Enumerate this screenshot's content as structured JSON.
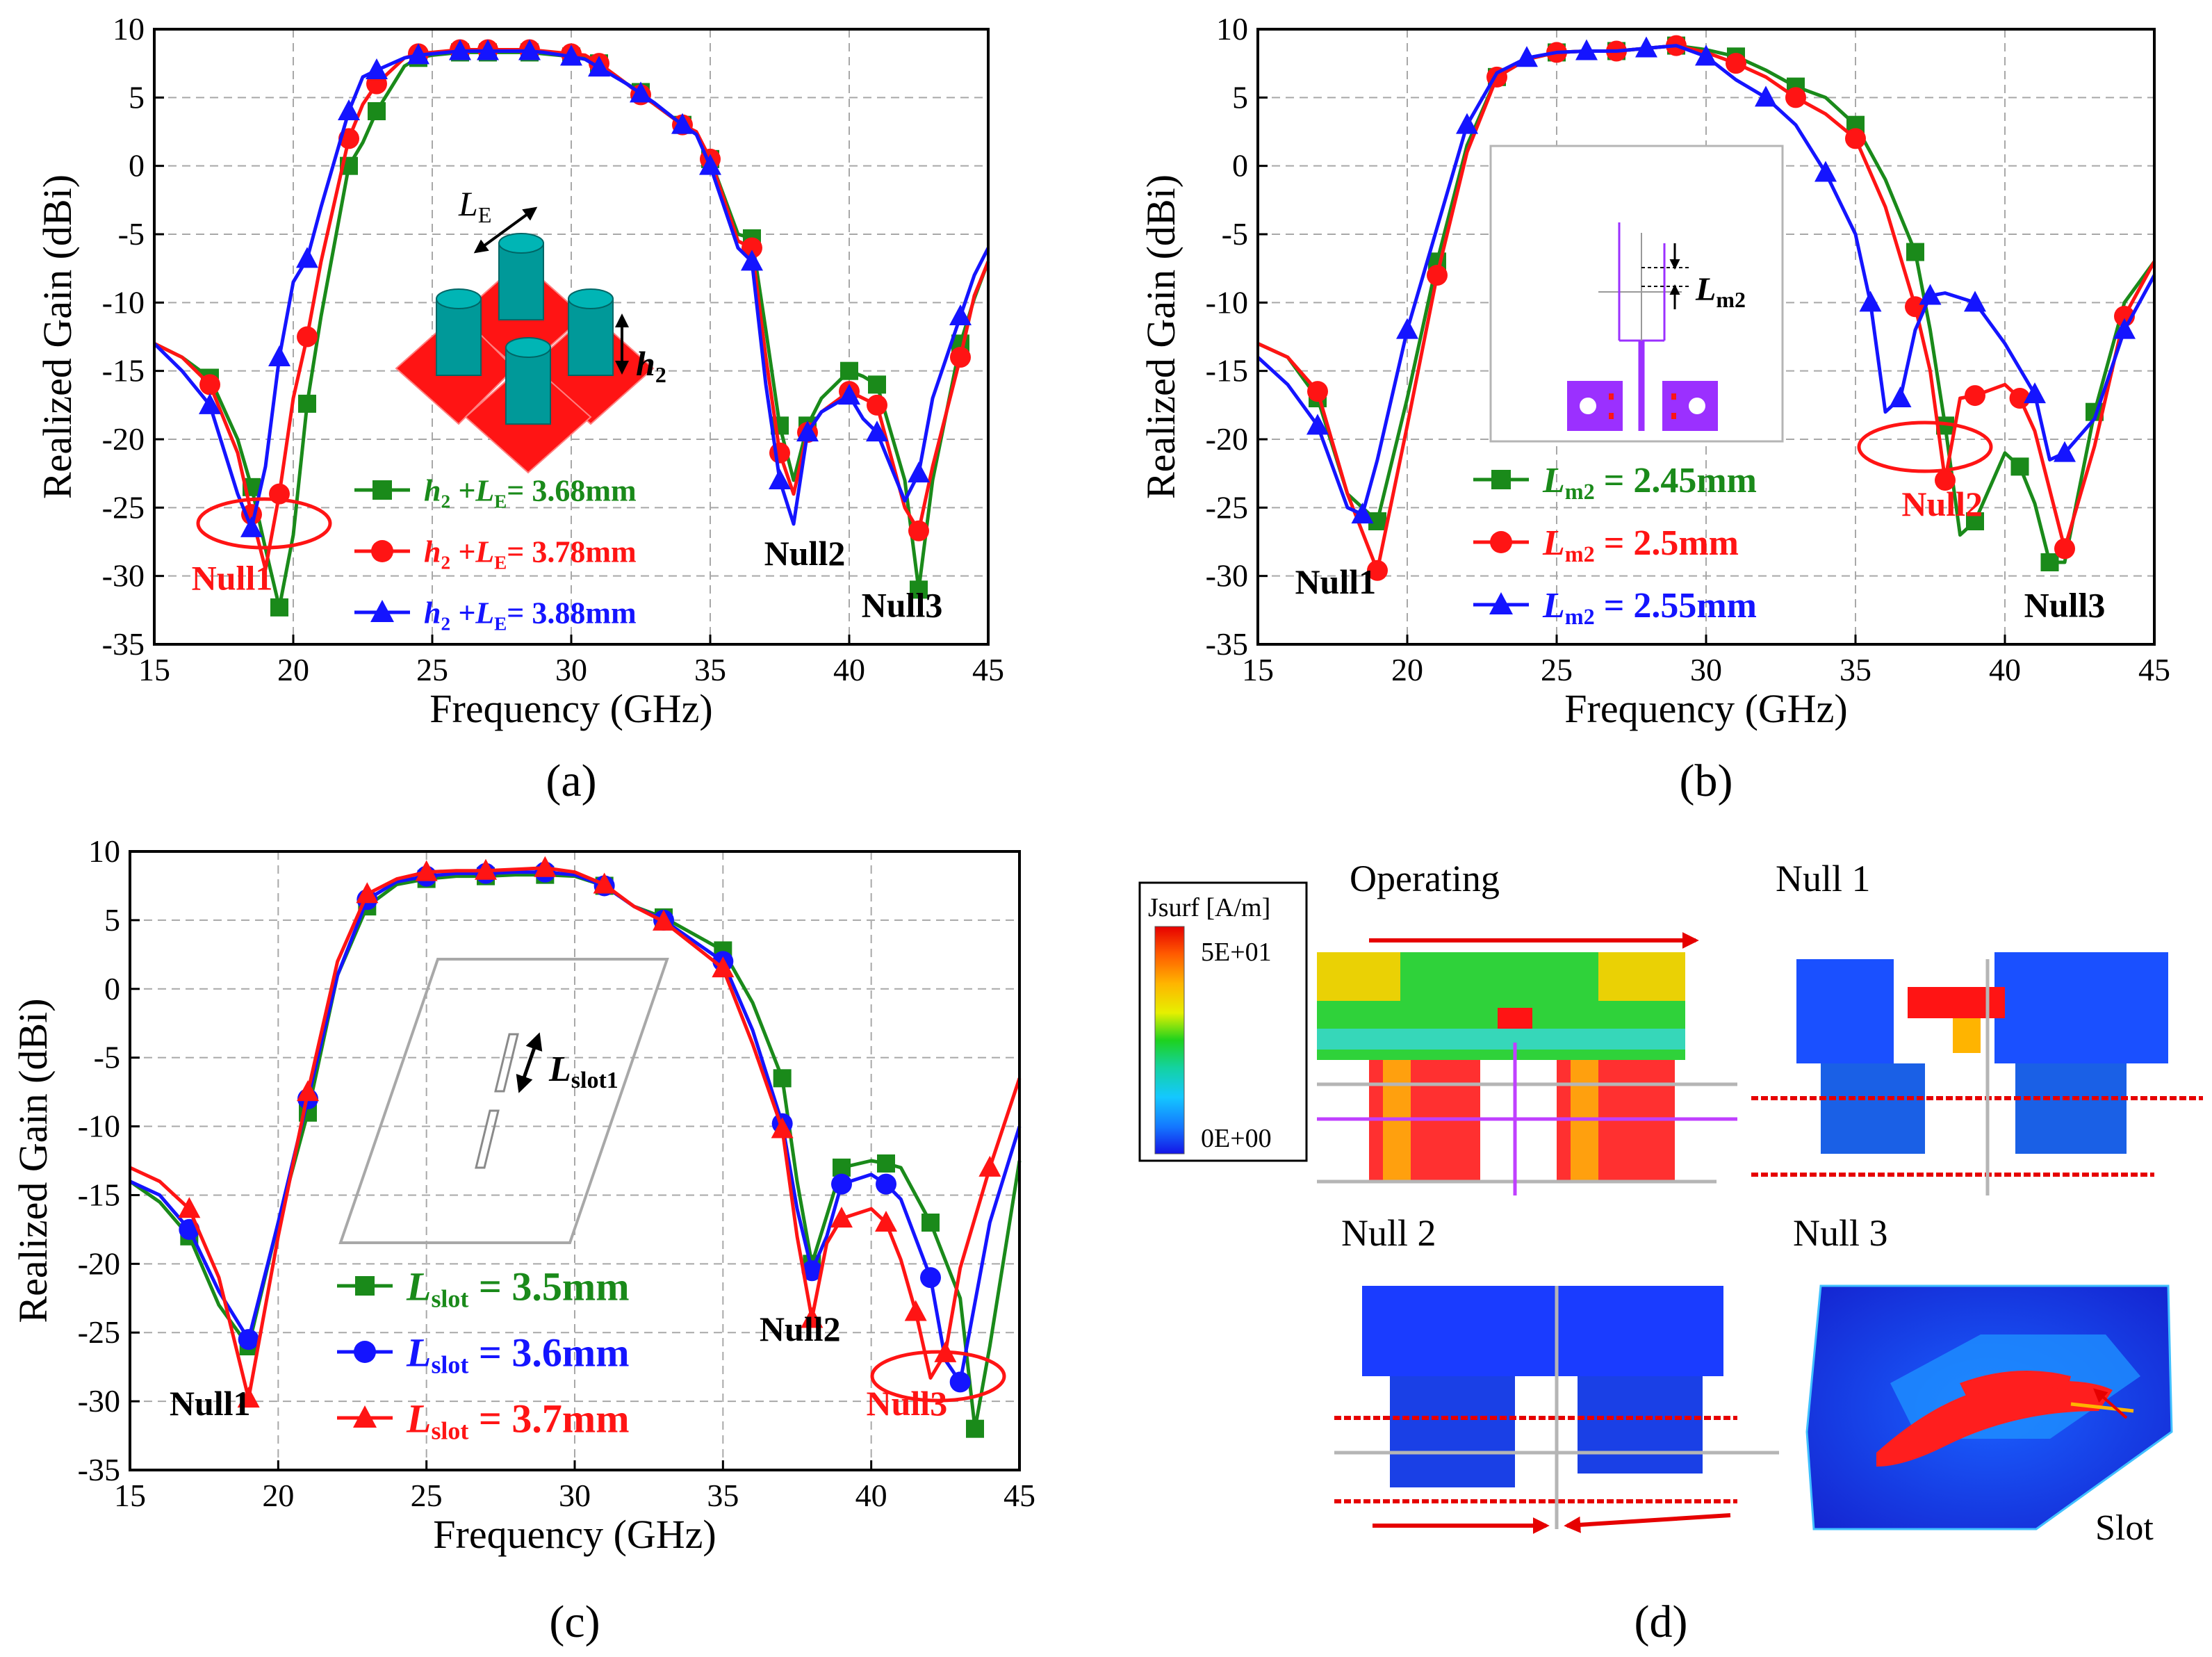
{
  "colors": {
    "green": "#1a8a1a",
    "red": "#ff1414",
    "blue": "#1414ff",
    "grid": "#a8a8a8"
  },
  "chart_data": [
    {
      "id": "a",
      "type": "line",
      "panel_label": "(a)",
      "xlabel": "Frequency (GHz)",
      "ylabel": "Realized Gain (dBi)",
      "xlim": [
        15,
        45
      ],
      "ylim": [
        -35,
        10
      ],
      "xticks": [
        15,
        20,
        25,
        30,
        35,
        40,
        45
      ],
      "yticks": [
        10,
        5,
        0,
        -5,
        -10,
        -15,
        -20,
        -25,
        -30,
        -35
      ],
      "grid": true,
      "series": [
        {
          "name": "h2 +LE= 3.68mm",
          "label_main": "h",
          "label_sub1": "2",
          "label_mid": " +L",
          "label_sub2": "E",
          "label_tail": "= 3.68mm",
          "color": "green",
          "marker": "square",
          "x": [
            15,
            16,
            17,
            18,
            18.5,
            19,
            19.5,
            20,
            20.5,
            21,
            22,
            22.5,
            23,
            24,
            24.5,
            25,
            26,
            26.5,
            27,
            28,
            28.5,
            29,
            30,
            30.5,
            31,
            32,
            32.5,
            33,
            34,
            34.5,
            35,
            36,
            36.5,
            37,
            37.5,
            38,
            38.5,
            39,
            40,
            40.5,
            41,
            42,
            42.5,
            43,
            44,
            44.5,
            45
          ],
          "y": [
            -13,
            -14,
            -15.5,
            -20,
            -23.5,
            -28,
            -32.3,
            -27,
            -17.4,
            -11,
            0,
            1.7,
            4,
            7.3,
            7.9,
            8.1,
            8.3,
            8.3,
            8.3,
            8.3,
            8.3,
            8.2,
            8,
            7.9,
            7.5,
            6,
            5.4,
            4.5,
            3,
            2.3,
            0.5,
            -5,
            -5.3,
            -12,
            -19,
            -23,
            -19,
            -17,
            -15,
            -15.4,
            -16,
            -23,
            -31,
            -23,
            -13,
            -9.7,
            -7
          ]
        },
        {
          "name": "h2 +LE= 3.78mm",
          "label_main": "h",
          "label_sub1": "2",
          "label_mid": " +L",
          "label_sub2": "E",
          "label_tail": "= 3.78mm",
          "color": "red",
          "marker": "circle",
          "x": [
            15,
            16,
            17,
            18,
            18.5,
            19,
            19.5,
            20,
            20.5,
            21,
            22,
            22.5,
            23,
            24,
            24.5,
            25,
            26,
            26.5,
            27,
            28,
            28.5,
            29,
            30,
            30.5,
            31,
            32,
            32.5,
            33,
            34,
            34.5,
            35,
            36,
            36.5,
            37,
            37.5,
            38,
            38.5,
            39,
            40,
            40.5,
            41,
            42,
            42.5,
            43,
            44,
            44.5,
            45
          ],
          "y": [
            -13,
            -14,
            -16,
            -21,
            -25.5,
            -29.5,
            -24,
            -17,
            -12.5,
            -7,
            2,
            4.5,
            6,
            7.9,
            8.2,
            8.3,
            8.5,
            8.5,
            8.5,
            8.5,
            8.5,
            8.4,
            8.2,
            8.1,
            7.5,
            6,
            5.2,
            4.5,
            3,
            2.5,
            0.5,
            -5.5,
            -6,
            -14,
            -21,
            -24,
            -19.5,
            -18,
            -16.5,
            -17,
            -17.5,
            -25,
            -26.7,
            -22,
            -14,
            -9.5,
            -7
          ]
        },
        {
          "name": "h2 +LE= 3.88mm",
          "label_main": "h",
          "label_sub1": "2",
          "label_mid": " +L",
          "label_sub2": "E",
          "label_tail": "= 3.88mm",
          "color": "blue",
          "marker": "triangle",
          "x": [
            15,
            16,
            17,
            18,
            18.5,
            19,
            19.5,
            20,
            20.5,
            21,
            22,
            22.5,
            23,
            24,
            24.5,
            25,
            26,
            26.5,
            27,
            28,
            28.5,
            29,
            30,
            30.5,
            31,
            32,
            32.5,
            33,
            34,
            34.5,
            35,
            36,
            36.5,
            37,
            37.5,
            38,
            38.5,
            39,
            40,
            40.5,
            41,
            42,
            42.5,
            43,
            44,
            44.5,
            45
          ],
          "y": [
            -13,
            -15,
            -17.5,
            -24,
            -26.5,
            -22,
            -14,
            -8.5,
            -6.8,
            -3,
            4,
            6.5,
            7,
            7.9,
            8.1,
            8.2,
            8.4,
            8.4,
            8.4,
            8.4,
            8.4,
            8.3,
            8,
            7.8,
            7.2,
            6,
            5.3,
            4.6,
            3,
            2.3,
            0,
            -6,
            -7,
            -16,
            -23,
            -26.2,
            -19.5,
            -18,
            -16.8,
            -18.5,
            -19.5,
            -24.5,
            -22.5,
            -17,
            -11,
            -8,
            -6
          ]
        }
      ],
      "annotations": [
        {
          "text": "Null1",
          "color": "red",
          "x": 17.8,
          "y": -31
        },
        {
          "text": "Null2",
          "color": "black",
          "x": 38.4,
          "y": -29.2
        },
        {
          "text": "Null3",
          "color": "black",
          "x": 41.9,
          "y": -33
        }
      ],
      "inset_labels": {
        "le_main": "L",
        "le_sub": "E",
        "h_main": "h",
        "h_sub": "2"
      }
    },
    {
      "id": "b",
      "type": "line",
      "panel_label": "(b)",
      "xlabel": "Frequency (GHz)",
      "ylabel": "Realized Gain (dBi)",
      "xlim": [
        15,
        45
      ],
      "ylim": [
        -35,
        10
      ],
      "xticks": [
        15,
        20,
        25,
        30,
        35,
        40,
        45
      ],
      "yticks": [
        10,
        5,
        0,
        -5,
        -10,
        -15,
        -20,
        -25,
        -30,
        -35
      ],
      "grid": true,
      "series": [
        {
          "name": "Lm2 = 2.45mm",
          "label_main": "L",
          "label_sub1": "m2",
          "label_mid": "",
          "label_sub2": "",
          "label_tail": " = 2.45mm",
          "color": "green",
          "marker": "square",
          "x": [
            15,
            16,
            17,
            18,
            19,
            20,
            21,
            22,
            23,
            24,
            25,
            26,
            27,
            28,
            29,
            30,
            31,
            32,
            33,
            34,
            35,
            36,
            37,
            37.5,
            38,
            38.5,
            39,
            40,
            40.5,
            41,
            41.5,
            42,
            43,
            44,
            45
          ],
          "y": [
            -13,
            -14,
            -17,
            -24,
            -26,
            -17,
            -7,
            1.5,
            6.5,
            7.8,
            8.3,
            8.4,
            8.4,
            8.6,
            8.8,
            8.5,
            8,
            7,
            5.8,
            5,
            3,
            -1,
            -6.3,
            -12,
            -19,
            -27,
            -26,
            -21,
            -22,
            -24.7,
            -29,
            -29,
            -18,
            -10,
            -7
          ]
        },
        {
          "name": "Lm2 = 2.5mm",
          "label_main": "L",
          "label_sub1": "m2",
          "label_mid": "",
          "label_sub2": "",
          "label_tail": " = 2.5mm",
          "color": "red",
          "marker": "circle",
          "x": [
            15,
            16,
            17,
            18,
            19,
            20,
            21,
            22,
            23,
            24,
            25,
            26,
            27,
            28,
            29,
            30,
            31,
            32,
            33,
            34,
            35,
            36,
            37,
            37.5,
            38,
            38.5,
            39,
            40,
            40.5,
            41,
            42,
            43,
            44,
            45
          ],
          "y": [
            -13,
            -14,
            -16.5,
            -24,
            -29.6,
            -19,
            -8,
            1,
            6.5,
            7.8,
            8.3,
            8.4,
            8.4,
            8.6,
            8.8,
            8.3,
            7.5,
            6.5,
            5,
            3.8,
            2,
            -3,
            -10.3,
            -15,
            -23,
            -17,
            -16.8,
            -16,
            -17,
            -19.4,
            -28,
            -20.5,
            -11,
            -7
          ]
        },
        {
          "name": "Lm2 = 2.55mm",
          "label_main": "L",
          "label_sub1": "m2",
          "label_mid": "",
          "label_sub2": "",
          "label_tail": " = 2.55mm",
          "color": "blue",
          "marker": "triangle",
          "x": [
            15,
            16,
            17,
            18,
            18.5,
            19,
            20,
            21,
            22,
            23,
            24,
            25,
            26,
            27,
            28,
            29,
            30,
            31,
            32,
            33,
            34,
            35,
            35.5,
            36,
            36.5,
            37,
            37.5,
            38,
            39,
            40,
            41,
            41.5,
            42,
            43,
            44,
            45
          ],
          "y": [
            -14,
            -16,
            -19,
            -25,
            -25.5,
            -21.5,
            -12,
            -4.5,
            3,
            6.8,
            7.9,
            8.3,
            8.4,
            8.4,
            8.6,
            8.8,
            8,
            6.3,
            5,
            3,
            -0.5,
            -5,
            -10,
            -18,
            -17,
            -12,
            -9.5,
            -9.3,
            -10,
            -13,
            -16.7,
            -21.5,
            -21,
            -18.5,
            -12,
            -8
          ]
        }
      ],
      "annotations": [
        {
          "text": "Null1",
          "color": "black",
          "x": 17.6,
          "y": -31.3
        },
        {
          "text": "Null2",
          "color": "red",
          "x": 37.9,
          "y": -25.6
        },
        {
          "text": "Null3",
          "color": "black",
          "x": 42,
          "y": -33
        }
      ],
      "inset_labels": {
        "lm_main": "L",
        "lm_sub": "m2"
      }
    },
    {
      "id": "c",
      "type": "line",
      "panel_label": "(c)",
      "xlabel": "Frequency (GHz)",
      "ylabel": "Realized Gain (dBi)",
      "xlim": [
        15,
        45
      ],
      "ylim": [
        -35,
        10
      ],
      "xticks": [
        15,
        20,
        25,
        30,
        35,
        40,
        45
      ],
      "yticks": [
        10,
        5,
        0,
        -5,
        -10,
        -15,
        -20,
        -25,
        -30,
        -35
      ],
      "grid": true,
      "series": [
        {
          "name": "Lslot = 3.5mm",
          "label_main": "L",
          "label_sub1": "slot",
          "label_mid": "",
          "label_sub2": "",
          "label_tail": " = 3.5mm",
          "color": "green",
          "marker": "square",
          "x": [
            15,
            16,
            17,
            18,
            19,
            20,
            21,
            22,
            23,
            24,
            25,
            26,
            27,
            28,
            29,
            30,
            31,
            32,
            33,
            34,
            35,
            36,
            37,
            37.5,
            38,
            38.5,
            39,
            40,
            40.5,
            41,
            42,
            43,
            43.5,
            44,
            45
          ],
          "y": [
            -14,
            -15.5,
            -18,
            -23,
            -26,
            -17,
            -9,
            1,
            6,
            7.6,
            8,
            8.2,
            8.2,
            8.3,
            8.3,
            8.2,
            7.5,
            6,
            5.2,
            4,
            2.8,
            -1,
            -6.5,
            -14,
            -20,
            -16.5,
            -13,
            -12.5,
            -12.7,
            -13,
            -17,
            -22.5,
            -32,
            -26,
            -12.5
          ]
        },
        {
          "name": "Lslot = 3.6mm",
          "label_main": "L",
          "label_sub1": "slot",
          "label_mid": "",
          "label_sub2": "",
          "label_tail": " = 3.6mm",
          "color": "blue",
          "marker": "circle",
          "x": [
            15,
            16,
            17,
            18,
            19,
            20,
            21,
            22,
            23,
            24,
            25,
            26,
            27,
            28,
            29,
            30,
            31,
            32,
            33,
            34,
            35,
            36,
            37,
            37.5,
            38,
            38.5,
            39,
            40,
            40.5,
            41,
            42,
            42.5,
            43,
            44,
            45
          ],
          "y": [
            -14,
            -15,
            -17.5,
            -22,
            -25.5,
            -17,
            -8,
            1,
            6.5,
            7.8,
            8.2,
            8.4,
            8.4,
            8.5,
            8.5,
            8.3,
            7.5,
            6,
            5,
            3.5,
            2,
            -3,
            -9.8,
            -16,
            -20.5,
            -18,
            -14.2,
            -13.5,
            -14.2,
            -15.3,
            -21,
            -27,
            -28.6,
            -17,
            -10
          ]
        },
        {
          "name": "Lslot = 3.7mm",
          "label_main": "L",
          "label_sub1": "slot",
          "label_mid": "",
          "label_sub2": "",
          "label_tail": " = 3.7mm",
          "color": "red",
          "marker": "triangle",
          "x": [
            15,
            16,
            17,
            18,
            19,
            20,
            21,
            22,
            23,
            24,
            25,
            26,
            27,
            28,
            29,
            30,
            31,
            32,
            33,
            34,
            35,
            36,
            37,
            37.5,
            38,
            38.5,
            39,
            40,
            40.5,
            41,
            41.5,
            42,
            42.5,
            43,
            44,
            45
          ],
          "y": [
            -13,
            -14,
            -16,
            -21,
            -29.8,
            -18,
            -7.5,
            2,
            6.9,
            8,
            8.5,
            8.6,
            8.6,
            8.7,
            8.8,
            8.5,
            7.6,
            6,
            4.9,
            3.2,
            1.5,
            -4,
            -10.2,
            -18,
            -24,
            -18.5,
            -16.7,
            -16,
            -17,
            -19.7,
            -23.5,
            -28.3,
            -26.5,
            -20.3,
            -13,
            -6.5
          ]
        }
      ],
      "annotations": [
        {
          "text": "Null1",
          "color": "black",
          "x": 17.7,
          "y": -31
        },
        {
          "text": "Null2",
          "color": "black",
          "x": 37.6,
          "y": -25.6
        },
        {
          "text": "Null3",
          "color": "red",
          "x": 41.2,
          "y": -31
        }
      ],
      "inset_labels": {
        "ls_main": "L",
        "ls_sub": "slot1"
      }
    }
  ],
  "panel_d": {
    "label": "(d)",
    "titles": {
      "operating": "Operating",
      "null1": "Null 1",
      "null2": "Null 2",
      "null3": "Null 3"
    },
    "colorbar": {
      "title": "Jsurf [A/m]",
      "max": "5E+01",
      "min": "0E+00"
    },
    "slot_label": "Slot"
  }
}
